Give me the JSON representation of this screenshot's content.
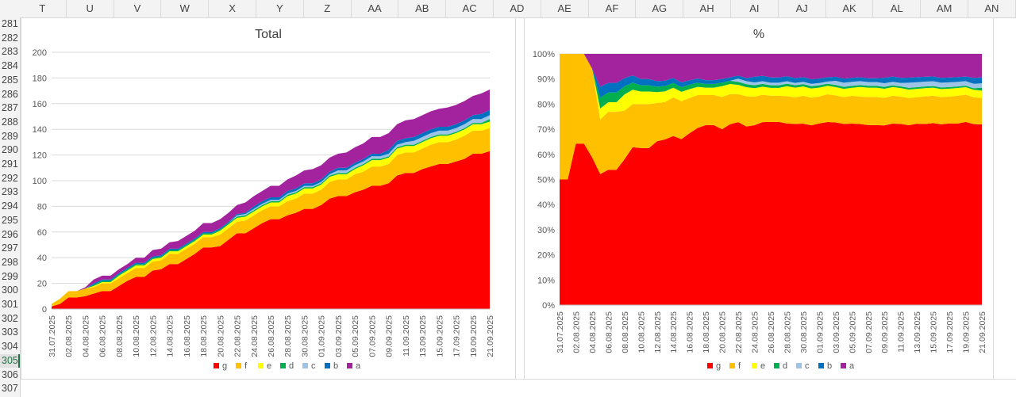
{
  "sheet": {
    "columns": [
      "T",
      "U",
      "V",
      "W",
      "X",
      "Y",
      "Z",
      "AA",
      "AB",
      "AC",
      "AD",
      "AE",
      "AF",
      "AG",
      "AH",
      "AI",
      "AJ",
      "AK",
      "AL",
      "AM",
      "AN"
    ],
    "rows": [
      "281",
      "282",
      "283",
      "284",
      "285",
      "286",
      "287",
      "288",
      "289",
      "290",
      "291",
      "292",
      "293",
      "294",
      "295",
      "296",
      "297",
      "298",
      "299",
      "300",
      "301",
      "302",
      "303",
      "304",
      "305",
      "306",
      "307"
    ],
    "selected_row": "305"
  },
  "chart_data": [
    {
      "type": "area",
      "stacked": true,
      "title": "Total",
      "x": [
        "31.07.2025",
        "01.08.2025",
        "02.08.2025",
        "03.08.2025",
        "04.08.2025",
        "05.08.2025",
        "06.08.2025",
        "07.08.2025",
        "08.08.2025",
        "09.08.2025",
        "10.08.2025",
        "11.08.2025",
        "12.08.2025",
        "13.08.2025",
        "14.08.2025",
        "15.08.2025",
        "16.08.2025",
        "17.08.2025",
        "18.08.2025",
        "19.08.2025",
        "20.08.2025",
        "21.08.2025",
        "22.08.2025",
        "23.08.2025",
        "24.08.2025",
        "25.08.2025",
        "26.08.2025",
        "27.08.2025",
        "28.08.2025",
        "29.08.2025",
        "30.08.2025",
        "31.08.2025",
        "01.09.2025",
        "02.09.2025",
        "03.09.2025",
        "04.09.2025",
        "05.09.2025",
        "06.09.2025",
        "07.09.2025",
        "08.09.2025",
        "09.09.2025",
        "10.09.2025",
        "11.09.2025",
        "12.09.2025",
        "13.09.2025",
        "14.09.2025",
        "15.09.2025",
        "16.09.2025",
        "17.09.2025",
        "18.09.2025",
        "19.09.2025",
        "20.09.2025",
        "21.09.2025"
      ],
      "x_tick_labels": [
        "31.07.2025",
        "02.08.2025",
        "04.08.2025",
        "06.08.2025",
        "08.08.2025",
        "10.08.2025",
        "12.08.2025",
        "14.08.2025",
        "16.08.2025",
        "18.08.2025",
        "20.08.2025",
        "22.08.2025",
        "24.08.2025",
        "26.08.2025",
        "28.08.2025",
        "30.08.2025",
        "01.09.2025",
        "03.09.2025",
        "05.09.2025",
        "07.09.2025",
        "09.09.2025",
        "11.09.2025",
        "13.09.2025",
        "15.09.2025",
        "17.09.2025",
        "19.09.2025",
        "21.09.2025"
      ],
      "ylim": [
        0,
        200
      ],
      "y_ticks": [
        0,
        20,
        40,
        60,
        80,
        100,
        120,
        140,
        160,
        180,
        200
      ],
      "grid": true,
      "legend": "bottom",
      "series": [
        {
          "name": "g",
          "color": "#ff0000",
          "values": [
            2,
            4,
            9,
            9,
            10,
            12,
            14,
            14,
            18,
            22,
            25,
            25,
            30,
            31,
            35,
            35,
            39,
            43,
            48,
            48,
            49,
            54,
            59,
            59,
            63,
            67,
            70,
            70,
            73,
            75,
            78,
            78,
            81,
            86,
            88,
            88,
            91,
            93,
            96,
            96,
            98,
            104,
            106,
            106,
            109,
            111,
            113,
            113,
            115,
            117,
            121,
            121,
            123
          ]
        },
        {
          "name": "f",
          "color": "#ffc000",
          "values": [
            2,
            4,
            5,
            5,
            6,
            5,
            6,
            6,
            6,
            6,
            7,
            7,
            7,
            7,
            8,
            8,
            8,
            8,
            8,
            8,
            9,
            9,
            9,
            10,
            10,
            10,
            10,
            10,
            11,
            11,
            12,
            12,
            12,
            13,
            13,
            13,
            14,
            14,
            15,
            15,
            15,
            16,
            16,
            16,
            16,
            17,
            17,
            17,
            17,
            18,
            18,
            18,
            18
          ]
        },
        {
          "name": "e",
          "color": "#ffff00",
          "values": [
            0,
            0,
            0,
            0,
            0,
            1,
            1,
            1,
            2,
            2,
            2,
            2,
            2,
            2,
            2,
            2,
            2,
            2,
            2,
            2,
            3,
            3,
            3,
            3,
            3,
            3,
            3,
            3,
            4,
            4,
            4,
            4,
            4,
            4,
            4,
            4,
            4,
            5,
            5,
            5,
            5,
            5,
            5,
            5,
            5,
            5,
            5,
            5,
            5,
            5,
            5,
            5,
            5
          ]
        },
        {
          "name": "d",
          "color": "#00b050",
          "values": [
            0,
            0,
            0,
            0,
            0,
            1,
            1,
            1,
            1,
            1,
            1,
            1,
            1,
            1,
            1,
            1,
            1,
            1,
            1,
            1,
            1,
            1,
            1,
            1,
            1,
            1,
            1,
            1,
            1,
            1,
            1,
            1,
            1,
            1,
            1,
            1,
            1,
            1,
            1,
            1,
            1,
            1,
            1,
            1,
            1,
            1,
            1,
            1,
            1,
            1,
            1,
            1,
            2
          ]
        },
        {
          "name": "c",
          "color": "#9dc3e6",
          "values": [
            0,
            0,
            0,
            0,
            0,
            0,
            0,
            0,
            0,
            0,
            0,
            0,
            0,
            0,
            0,
            0,
            0,
            0,
            0,
            0,
            0,
            0,
            1,
            1,
            1,
            1,
            1,
            1,
            1,
            1,
            1,
            1,
            1,
            1,
            2,
            2,
            2,
            2,
            2,
            2,
            2,
            2,
            2,
            3,
            3,
            3,
            3,
            3,
            3,
            3,
            3,
            3,
            3
          ]
        },
        {
          "name": "b",
          "color": "#0070c0",
          "values": [
            0,
            0,
            0,
            0,
            0,
            1,
            1,
            1,
            1,
            1,
            1,
            1,
            1,
            1,
            1,
            1,
            1,
            1,
            1,
            1,
            1,
            1,
            1,
            1,
            2,
            2,
            2,
            2,
            2,
            2,
            2,
            2,
            2,
            2,
            2,
            2,
            2,
            2,
            2,
            2,
            3,
            3,
            3,
            3,
            3,
            3,
            3,
            3,
            3,
            3,
            3,
            4,
            4
          ]
        },
        {
          "name": "a",
          "color": "#a3239f",
          "values": [
            0,
            0,
            0,
            0,
            1,
            3,
            3,
            3,
            3,
            3,
            4,
            4,
            5,
            5,
            5,
            6,
            6,
            6,
            7,
            7,
            7,
            7,
            7,
            8,
            8,
            8,
            9,
            9,
            9,
            10,
            10,
            11,
            11,
            11,
            11,
            12,
            12,
            12,
            13,
            13,
            13,
            13,
            14,
            14,
            14,
            14,
            14,
            15,
            15,
            15,
            15,
            16,
            16
          ]
        }
      ]
    },
    {
      "type": "area",
      "stacked": true,
      "percent": true,
      "title": "%",
      "x_tick_labels": [
        "31.07.2025",
        "02.08.2025",
        "04.08.2025",
        "06.08.2025",
        "08.08.2025",
        "10.08.2025",
        "12.08.2025",
        "14.08.2025",
        "16.08.2025",
        "18.08.2025",
        "20.08.2025",
        "22.08.2025",
        "24.08.2025",
        "26.08.2025",
        "28.08.2025",
        "30.08.2025",
        "01.09.2025",
        "03.09.2025",
        "05.09.2025",
        "07.09.2025",
        "09.09.2025",
        "11.09.2025",
        "13.09.2025",
        "15.09.2025",
        "17.09.2025",
        "19.09.2025",
        "21.09.2025"
      ],
      "ylim": [
        0,
        100
      ],
      "y_ticks": [
        "0%",
        "10%",
        "20%",
        "30%",
        "40%",
        "50%",
        "60%",
        "70%",
        "80%",
        "90%",
        "100%"
      ],
      "grid": true,
      "legend": "bottom",
      "series": [
        {
          "name": "g",
          "color": "#ff0000"
        },
        {
          "name": "f",
          "color": "#ffc000"
        },
        {
          "name": "e",
          "color": "#ffff00"
        },
        {
          "name": "d",
          "color": "#00b050"
        },
        {
          "name": "c",
          "color": "#9dc3e6"
        },
        {
          "name": "b",
          "color": "#0070c0"
        },
        {
          "name": "a",
          "color": "#a3239f"
        }
      ]
    }
  ]
}
